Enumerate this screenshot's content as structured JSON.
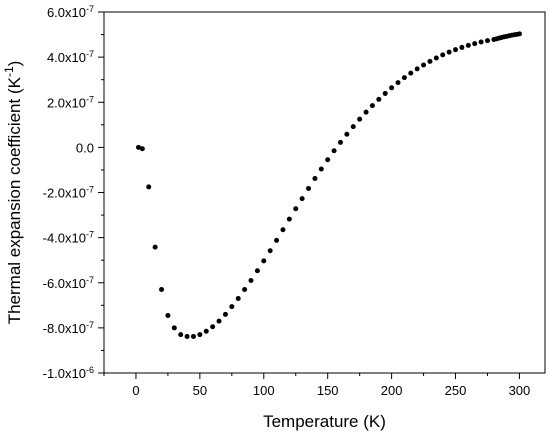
{
  "chart_data": {
    "type": "scatter",
    "xlabel": "Temperature (K)",
    "ylabel": {
      "main": "Thermal expansion coefficient (K",
      "sup": "-1",
      "close": ")"
    },
    "xlim": [
      -25,
      320
    ],
    "ylim": [
      -1e-06,
      6e-07
    ],
    "x_ticks": [
      0,
      50,
      100,
      150,
      200,
      250,
      300
    ],
    "x_tick_labels": [
      "0",
      "50",
      "100",
      "150",
      "200",
      "250",
      "300"
    ],
    "y_ticks": [
      {
        "value": 6e-07,
        "base": "6.0x10",
        "exp": "-7"
      },
      {
        "value": 4e-07,
        "base": "4.0x10",
        "exp": "-7"
      },
      {
        "value": 2e-07,
        "base": "2.0x10",
        "exp": "-7"
      },
      {
        "value": 0,
        "base": "0.0",
        "exp": ""
      },
      {
        "value": -2e-07,
        "base": "-2.0x10",
        "exp": "-7"
      },
      {
        "value": -4e-07,
        "base": "-4.0x10",
        "exp": "-7"
      },
      {
        "value": -6e-07,
        "base": "-6.0x10",
        "exp": "-7"
      },
      {
        "value": -8e-07,
        "base": "-8.0x10",
        "exp": "-7"
      },
      {
        "value": -1e-06,
        "base": "-1.0x10",
        "exp": "-6"
      }
    ],
    "grid": false,
    "series": [
      {
        "color": "#000000",
        "x": [
          2,
          5,
          10,
          15,
          20,
          25,
          30,
          35,
          40,
          45,
          50,
          55,
          60,
          65,
          70,
          75,
          80,
          85,
          90,
          95,
          100,
          105,
          110,
          115,
          120,
          125,
          130,
          135,
          140,
          145,
          150,
          155,
          160,
          165,
          170,
          175,
          180,
          185,
          190,
          195,
          200,
          205,
          210,
          215,
          220,
          225,
          230,
          235,
          240,
          245,
          250,
          255,
          260,
          265,
          270,
          275,
          280,
          282,
          284,
          286,
          288,
          290,
          292,
          294,
          296,
          298,
          300
        ],
        "y": [
          0.0,
          -6e-09,
          -1.75e-07,
          -4.42e-07,
          -6.3e-07,
          -7.45e-07,
          -8e-07,
          -8.3e-07,
          -8.38e-07,
          -8.38e-07,
          -8.3e-07,
          -8.15e-07,
          -7.95e-07,
          -7.7e-07,
          -7.4e-07,
          -7.06e-07,
          -6.7e-07,
          -6.3e-07,
          -5.9e-07,
          -5.47e-07,
          -5.03e-07,
          -4.58e-07,
          -4.12e-07,
          -3.65e-07,
          -3.18e-07,
          -2.72e-07,
          -2.27e-07,
          -1.82e-07,
          -1.38e-07,
          -9.6e-08,
          -5.5e-08,
          -1.5e-08,
          2.2e-08,
          5.8e-08,
          9.2e-08,
          1.25e-07,
          1.56e-07,
          1.85e-07,
          2.13e-07,
          2.39e-07,
          2.64e-07,
          2.87e-07,
          3.09e-07,
          3.29e-07,
          3.48e-07,
          3.65e-07,
          3.81e-07,
          3.96e-07,
          4.1e-07,
          4.22e-07,
          4.33e-07,
          4.43e-07,
          4.52e-07,
          4.6e-07,
          4.67e-07,
          4.73e-07,
          4.78e-07,
          4.81e-07,
          4.84e-07,
          4.87e-07,
          4.9e-07,
          4.92e-07,
          4.95e-07,
          4.97e-07,
          4.99e-07,
          5.01e-07,
          5.03e-07
        ]
      }
    ]
  }
}
